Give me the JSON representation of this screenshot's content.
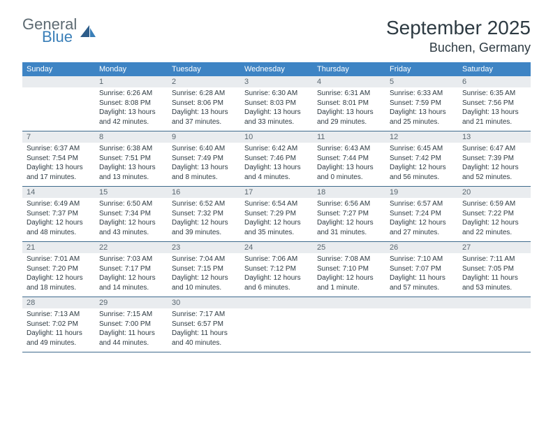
{
  "brand": {
    "part1": "General",
    "part2": "Blue"
  },
  "title": "September 2025",
  "location": "Buchen, Germany",
  "colors": {
    "header_bg": "#3e84c4",
    "header_text": "#ffffff",
    "daynum_bg": "#e9ecef",
    "daynum_text": "#5a6770",
    "body_text": "#2d3a42",
    "week_border": "#3e6a8c",
    "brand_gray": "#5d6a72",
    "brand_blue": "#3a7fb8",
    "background": "#ffffff"
  },
  "typography": {
    "title_fontsize": 28,
    "location_fontsize": 18,
    "dayname_fontsize": 11,
    "daynum_fontsize": 11,
    "body_fontsize": 10
  },
  "daynames": [
    "Sunday",
    "Monday",
    "Tuesday",
    "Wednesday",
    "Thursday",
    "Friday",
    "Saturday"
  ],
  "weeks": [
    [
      {
        "n": "",
        "lines": []
      },
      {
        "n": "1",
        "lines": [
          "Sunrise: 6:26 AM",
          "Sunset: 8:08 PM",
          "Daylight: 13 hours",
          "and 42 minutes."
        ]
      },
      {
        "n": "2",
        "lines": [
          "Sunrise: 6:28 AM",
          "Sunset: 8:06 PM",
          "Daylight: 13 hours",
          "and 37 minutes."
        ]
      },
      {
        "n": "3",
        "lines": [
          "Sunrise: 6:30 AM",
          "Sunset: 8:03 PM",
          "Daylight: 13 hours",
          "and 33 minutes."
        ]
      },
      {
        "n": "4",
        "lines": [
          "Sunrise: 6:31 AM",
          "Sunset: 8:01 PM",
          "Daylight: 13 hours",
          "and 29 minutes."
        ]
      },
      {
        "n": "5",
        "lines": [
          "Sunrise: 6:33 AM",
          "Sunset: 7:59 PM",
          "Daylight: 13 hours",
          "and 25 minutes."
        ]
      },
      {
        "n": "6",
        "lines": [
          "Sunrise: 6:35 AM",
          "Sunset: 7:56 PM",
          "Daylight: 13 hours",
          "and 21 minutes."
        ]
      }
    ],
    [
      {
        "n": "7",
        "lines": [
          "Sunrise: 6:37 AM",
          "Sunset: 7:54 PM",
          "Daylight: 13 hours",
          "and 17 minutes."
        ]
      },
      {
        "n": "8",
        "lines": [
          "Sunrise: 6:38 AM",
          "Sunset: 7:51 PM",
          "Daylight: 13 hours",
          "and 13 minutes."
        ]
      },
      {
        "n": "9",
        "lines": [
          "Sunrise: 6:40 AM",
          "Sunset: 7:49 PM",
          "Daylight: 13 hours",
          "and 8 minutes."
        ]
      },
      {
        "n": "10",
        "lines": [
          "Sunrise: 6:42 AM",
          "Sunset: 7:46 PM",
          "Daylight: 13 hours",
          "and 4 minutes."
        ]
      },
      {
        "n": "11",
        "lines": [
          "Sunrise: 6:43 AM",
          "Sunset: 7:44 PM",
          "Daylight: 13 hours",
          "and 0 minutes."
        ]
      },
      {
        "n": "12",
        "lines": [
          "Sunrise: 6:45 AM",
          "Sunset: 7:42 PM",
          "Daylight: 12 hours",
          "and 56 minutes."
        ]
      },
      {
        "n": "13",
        "lines": [
          "Sunrise: 6:47 AM",
          "Sunset: 7:39 PM",
          "Daylight: 12 hours",
          "and 52 minutes."
        ]
      }
    ],
    [
      {
        "n": "14",
        "lines": [
          "Sunrise: 6:49 AM",
          "Sunset: 7:37 PM",
          "Daylight: 12 hours",
          "and 48 minutes."
        ]
      },
      {
        "n": "15",
        "lines": [
          "Sunrise: 6:50 AM",
          "Sunset: 7:34 PM",
          "Daylight: 12 hours",
          "and 43 minutes."
        ]
      },
      {
        "n": "16",
        "lines": [
          "Sunrise: 6:52 AM",
          "Sunset: 7:32 PM",
          "Daylight: 12 hours",
          "and 39 minutes."
        ]
      },
      {
        "n": "17",
        "lines": [
          "Sunrise: 6:54 AM",
          "Sunset: 7:29 PM",
          "Daylight: 12 hours",
          "and 35 minutes."
        ]
      },
      {
        "n": "18",
        "lines": [
          "Sunrise: 6:56 AM",
          "Sunset: 7:27 PM",
          "Daylight: 12 hours",
          "and 31 minutes."
        ]
      },
      {
        "n": "19",
        "lines": [
          "Sunrise: 6:57 AM",
          "Sunset: 7:24 PM",
          "Daylight: 12 hours",
          "and 27 minutes."
        ]
      },
      {
        "n": "20",
        "lines": [
          "Sunrise: 6:59 AM",
          "Sunset: 7:22 PM",
          "Daylight: 12 hours",
          "and 22 minutes."
        ]
      }
    ],
    [
      {
        "n": "21",
        "lines": [
          "Sunrise: 7:01 AM",
          "Sunset: 7:20 PM",
          "Daylight: 12 hours",
          "and 18 minutes."
        ]
      },
      {
        "n": "22",
        "lines": [
          "Sunrise: 7:03 AM",
          "Sunset: 7:17 PM",
          "Daylight: 12 hours",
          "and 14 minutes."
        ]
      },
      {
        "n": "23",
        "lines": [
          "Sunrise: 7:04 AM",
          "Sunset: 7:15 PM",
          "Daylight: 12 hours",
          "and 10 minutes."
        ]
      },
      {
        "n": "24",
        "lines": [
          "Sunrise: 7:06 AM",
          "Sunset: 7:12 PM",
          "Daylight: 12 hours",
          "and 6 minutes."
        ]
      },
      {
        "n": "25",
        "lines": [
          "Sunrise: 7:08 AM",
          "Sunset: 7:10 PM",
          "Daylight: 12 hours",
          "and 1 minute."
        ]
      },
      {
        "n": "26",
        "lines": [
          "Sunrise: 7:10 AM",
          "Sunset: 7:07 PM",
          "Daylight: 11 hours",
          "and 57 minutes."
        ]
      },
      {
        "n": "27",
        "lines": [
          "Sunrise: 7:11 AM",
          "Sunset: 7:05 PM",
          "Daylight: 11 hours",
          "and 53 minutes."
        ]
      }
    ],
    [
      {
        "n": "28",
        "lines": [
          "Sunrise: 7:13 AM",
          "Sunset: 7:02 PM",
          "Daylight: 11 hours",
          "and 49 minutes."
        ]
      },
      {
        "n": "29",
        "lines": [
          "Sunrise: 7:15 AM",
          "Sunset: 7:00 PM",
          "Daylight: 11 hours",
          "and 44 minutes."
        ]
      },
      {
        "n": "30",
        "lines": [
          "Sunrise: 7:17 AM",
          "Sunset: 6:57 PM",
          "Daylight: 11 hours",
          "and 40 minutes."
        ]
      },
      {
        "n": "",
        "lines": []
      },
      {
        "n": "",
        "lines": []
      },
      {
        "n": "",
        "lines": []
      },
      {
        "n": "",
        "lines": []
      }
    ]
  ]
}
